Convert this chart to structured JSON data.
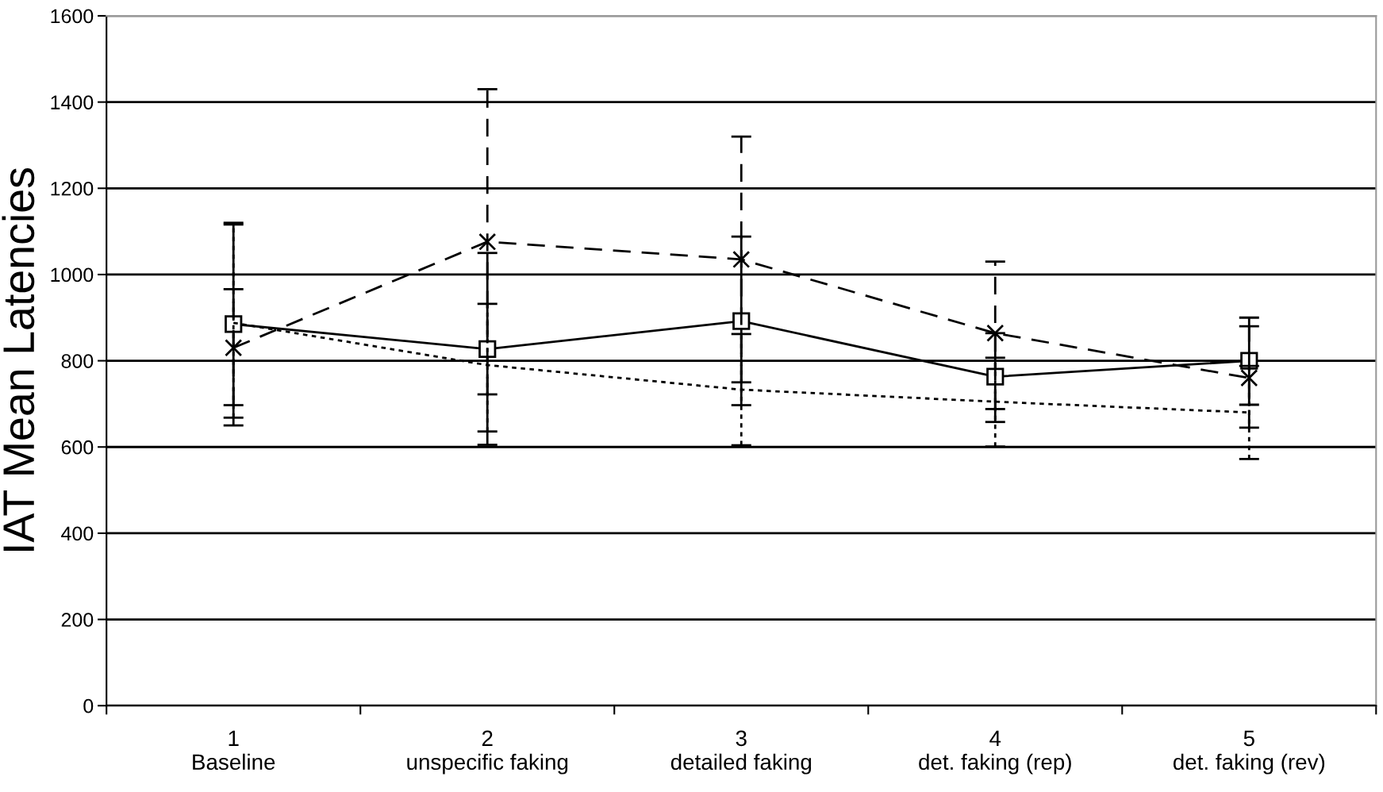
{
  "chart_data": {
    "type": "line",
    "ylabel": "IAT Mean Latencies",
    "categories": [
      "1\nBaseline",
      "2\nunspecific faking",
      "3\ndetailed faking",
      "4\ndet. faking (rep)",
      "5\ndet. faking (rev)"
    ],
    "series": [
      {
        "color": "#000000",
        "line_style": "solid",
        "marker": "square",
        "values": [
          885,
          827,
          892,
          763,
          800
        ],
        "errors": [
          [
            650,
            1120
          ],
          [
            605,
            1050
          ],
          [
            697,
            1088
          ],
          [
            658,
            864
          ],
          [
            698,
            900
          ]
        ]
      },
      {
        "color": "#000000",
        "line_style": "dashed",
        "marker": "cross",
        "values": [
          830,
          1076,
          1035,
          864,
          760
        ],
        "errors": [
          [
            697,
            966
          ],
          [
            722,
            1430
          ],
          [
            750,
            1320
          ],
          [
            688,
            1030
          ],
          [
            645,
            880
          ]
        ]
      },
      {
        "color": "#000000",
        "line_style": "dotted",
        "marker": "none",
        "values": [
          888,
          790,
          733,
          705,
          680
        ],
        "errors": [
          [
            668,
            1116
          ],
          [
            636,
            932
          ],
          [
            604,
            862
          ],
          [
            601,
            807
          ],
          [
            572,
            788
          ]
        ]
      }
    ],
    "ylim": [
      0,
      1600
    ],
    "yticks": [
      0,
      200,
      400,
      600,
      800,
      1000,
      1200,
      1400,
      1600
    ],
    "grid": "y"
  }
}
